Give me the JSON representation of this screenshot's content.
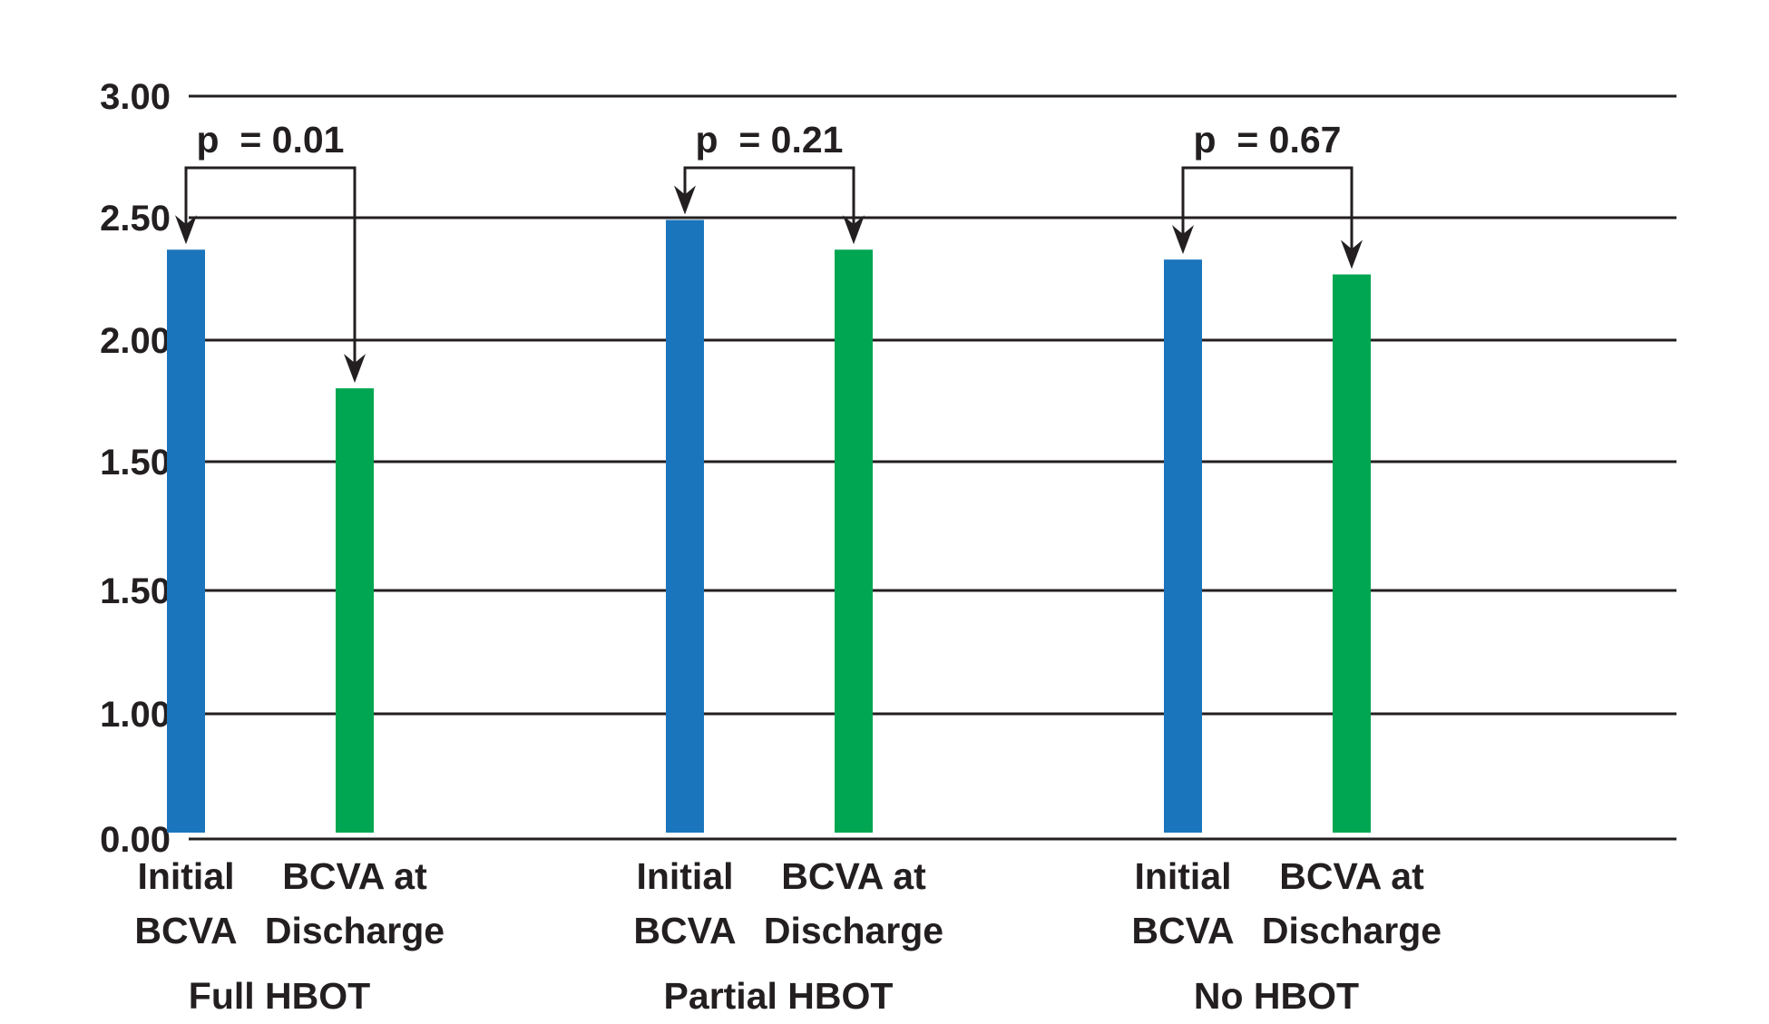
{
  "chart_data": {
    "type": "bar",
    "title": "",
    "xlabel": "",
    "ylabel": "",
    "y_tick_labels": [
      "0.00",
      "1.00",
      "1.50",
      "1.50",
      "2.00",
      "2.50",
      "3.00"
    ],
    "grid": true,
    "groups": [
      {
        "name": "Full HBOT",
        "bars": [
          {
            "label_lines": [
              "Initial",
              "BCVA"
            ],
            "series": "Initial BCVA",
            "value": 2.38
          },
          {
            "label_lines": [
              "BCVA at",
              "Discharge"
            ],
            "series": "BCVA at Discharge",
            "value": 1.82
          }
        ],
        "p_value": "p  = 0.01"
      },
      {
        "name": "Partial HBOT",
        "bars": [
          {
            "label_lines": [
              "Initial",
              "BCVA"
            ],
            "series": "Initial BCVA",
            "value": 2.5
          },
          {
            "label_lines": [
              "BCVA at",
              "Discharge"
            ],
            "series": "BCVA at Discharge",
            "value": 2.38
          }
        ],
        "p_value": "p  = 0.21"
      },
      {
        "name": "No HBOT",
        "bars": [
          {
            "label_lines": [
              "Initial",
              "BCVA"
            ],
            "series": "Initial BCVA",
            "value": 2.34
          },
          {
            "label_lines": [
              "BCVA at",
              "Discharge"
            ],
            "series": "BCVA at Discharge",
            "value": 2.28
          }
        ],
        "p_value": "p  = 0.67"
      }
    ],
    "colors": {
      "Initial BCVA": "#1b75bc",
      "BCVA at Discharge": "#00a651"
    }
  }
}
